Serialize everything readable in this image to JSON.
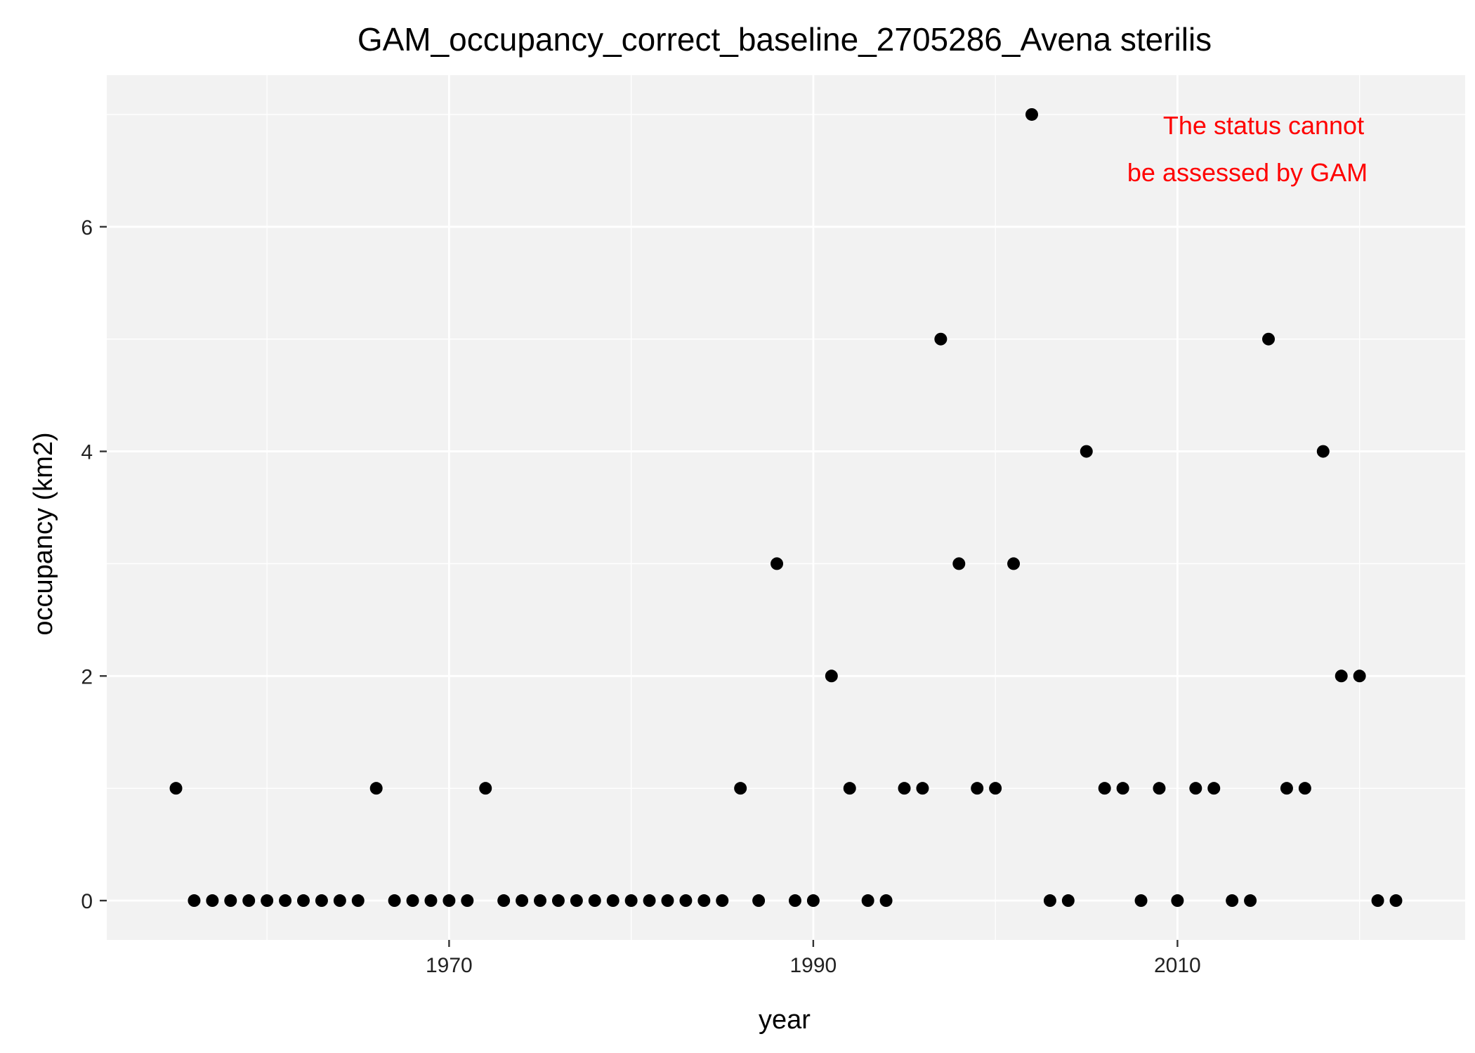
{
  "chart_data": {
    "type": "scatter",
    "title": "GAM_occupancy_correct_baseline_2705286_Avena sterilis",
    "xlabel": "year",
    "ylabel": "occupancy (km2)",
    "xlim": [
      1951.2,
      2025.8
    ],
    "ylim": [
      -0.35,
      7.35
    ],
    "x_ticks": [
      1970,
      1990,
      2010
    ],
    "y_ticks": [
      0,
      2,
      4,
      6
    ],
    "x_minor": [
      1960,
      1980,
      2000,
      2020
    ],
    "y_minor": [
      1,
      3,
      5,
      7
    ],
    "grid": true,
    "background": "#f2f2f2",
    "grid_color": "#ffffff",
    "point_color": "#000000",
    "annotation": {
      "lines": [
        "The status cannot",
        "be assessed by GAM"
      ],
      "color": "#ff0000",
      "position": "top-right"
    },
    "x": [
      1955,
      1956,
      1957,
      1958,
      1959,
      1960,
      1961,
      1962,
      1963,
      1964,
      1965,
      1966,
      1967,
      1968,
      1969,
      1970,
      1971,
      1972,
      1973,
      1974,
      1975,
      1976,
      1977,
      1978,
      1979,
      1980,
      1981,
      1982,
      1983,
      1984,
      1985,
      1986,
      1987,
      1988,
      1989,
      1990,
      1991,
      1992,
      1993,
      1994,
      1995,
      1996,
      1997,
      1998,
      1999,
      2000,
      2001,
      2002,
      2003,
      2004,
      2005,
      2006,
      2007,
      2008,
      2009,
      2010,
      2011,
      2012,
      2013,
      2014,
      2015,
      2016,
      2017,
      2018,
      2019,
      2020,
      2021,
      2022
    ],
    "y": [
      1,
      0,
      0,
      0,
      0,
      0,
      0,
      0,
      0,
      0,
      0,
      1,
      0,
      0,
      0,
      0,
      0,
      1,
      0,
      0,
      0,
      0,
      0,
      0,
      0,
      0,
      0,
      0,
      0,
      0,
      0,
      1,
      0,
      3,
      0,
      0,
      2,
      1,
      0,
      0,
      1,
      1,
      5,
      3,
      1,
      1,
      3,
      7,
      0,
      0,
      4,
      1,
      1,
      0,
      1,
      0,
      1,
      1,
      0,
      0,
      5,
      1,
      1,
      4,
      2,
      2,
      0,
      0
    ]
  }
}
